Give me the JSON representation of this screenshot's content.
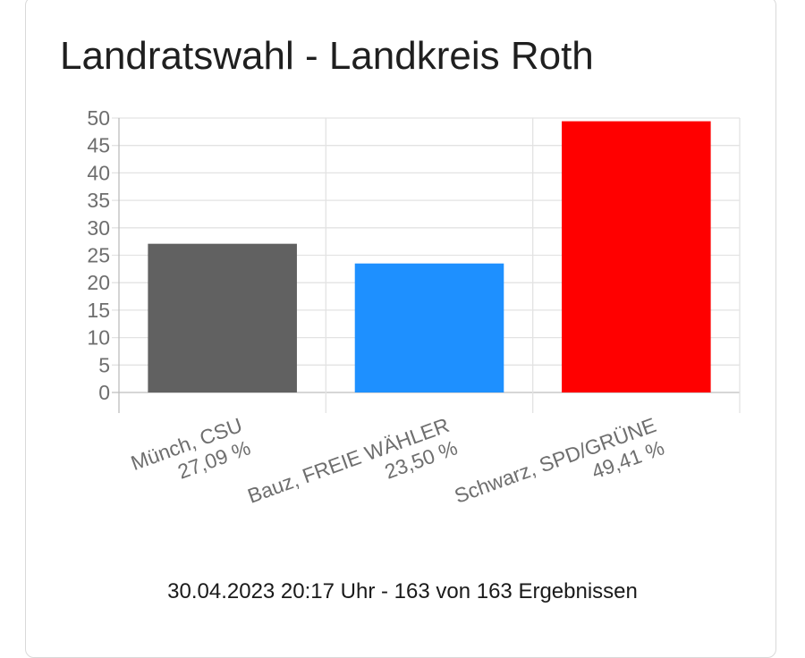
{
  "chart_data": {
    "type": "bar",
    "title": "Landratswahl - Landkreis Roth",
    "xlabel": "",
    "ylabel": "",
    "ylim": [
      0,
      50
    ],
    "yticks": [
      0,
      5,
      10,
      15,
      20,
      25,
      30,
      35,
      40,
      45,
      50
    ],
    "grid": true,
    "categories": [
      [
        "Münch, CSU",
        "27,09 %"
      ],
      [
        "Bauz, FREIE WÄHLER",
        "23,50 %"
      ],
      [
        "Schwarz, SPD/GRÜNE",
        "49,41 %"
      ]
    ],
    "values": [
      27.09,
      23.5,
      49.41
    ],
    "colors": [
      "#616161",
      "#1e90ff",
      "#ff0000"
    ]
  },
  "footer": {
    "status": "30.04.2023 20:17 Uhr - 163 von 163 Ergebnissen"
  }
}
